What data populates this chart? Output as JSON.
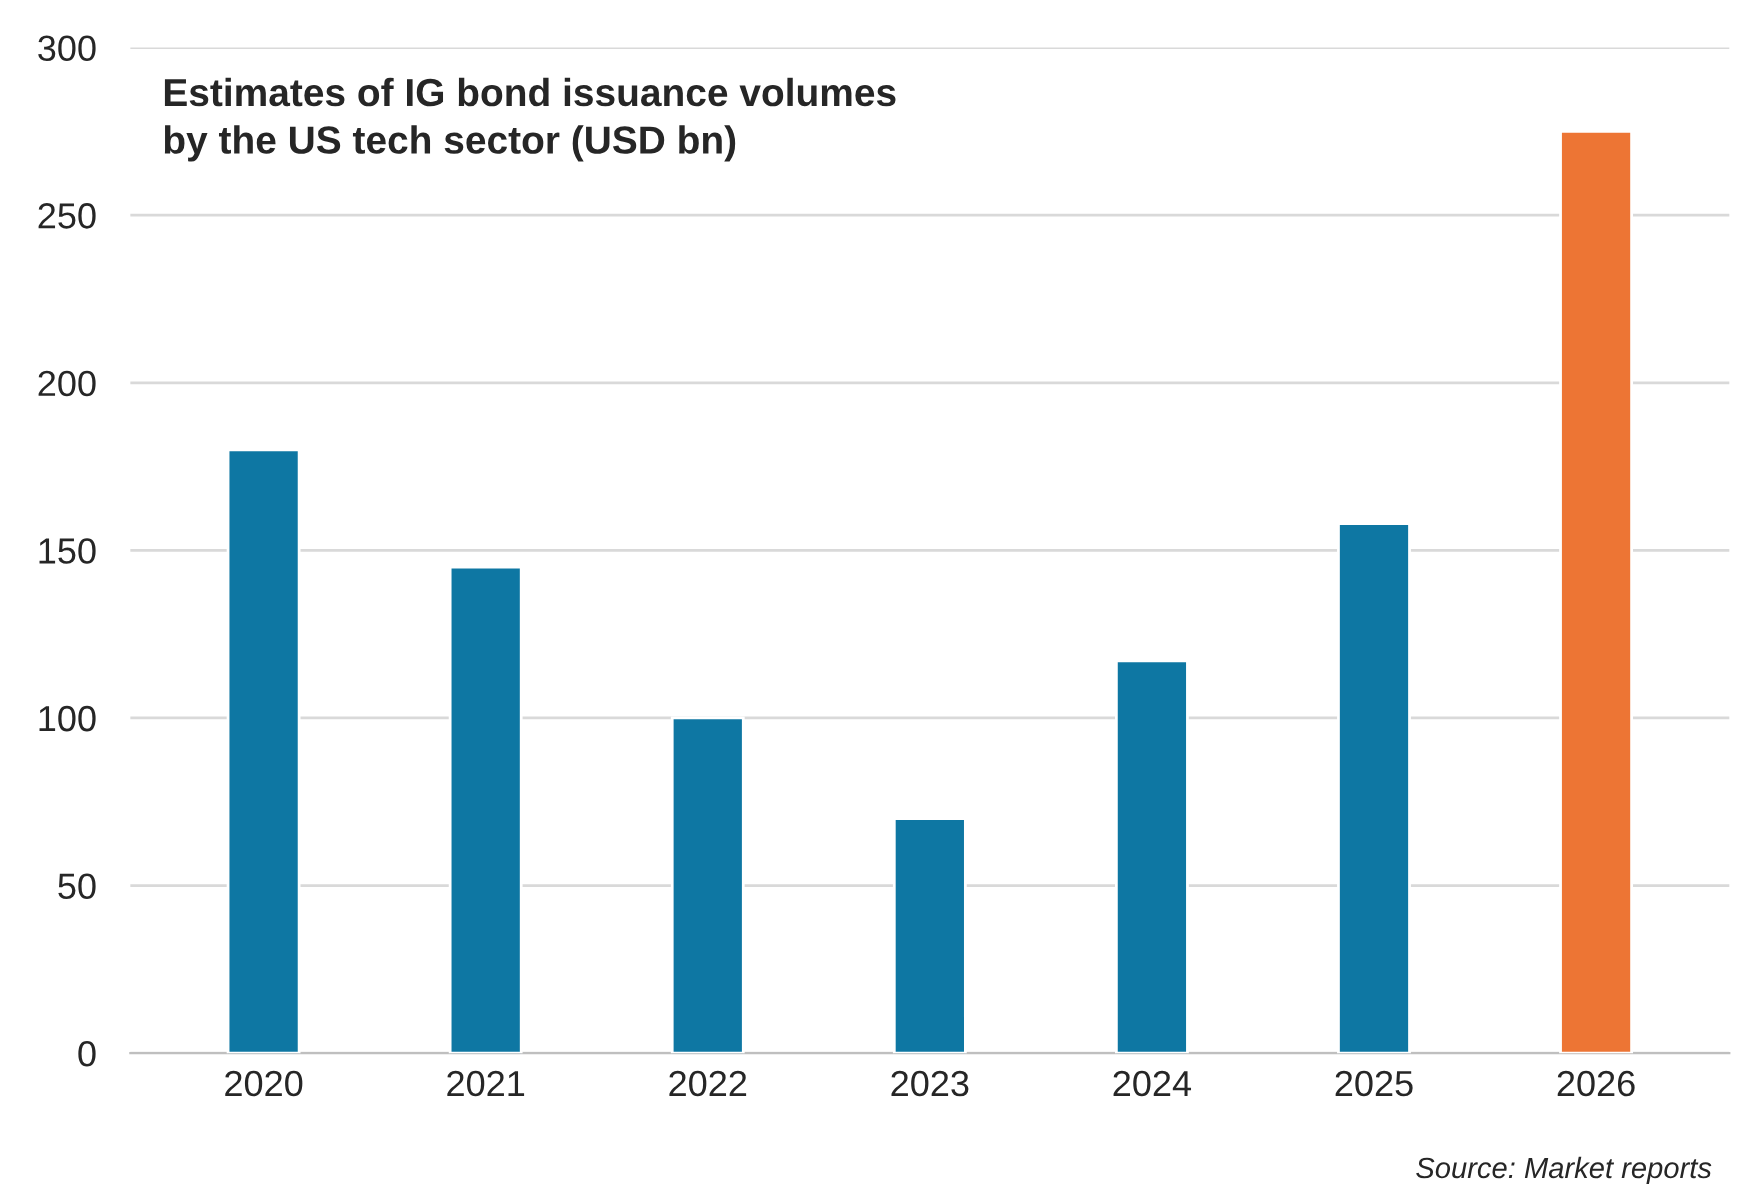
{
  "chart_data": {
    "type": "bar",
    "title": "Estimates of IG bond issuance volumes\nby the US tech sector (USD bn)",
    "categories": [
      "2020",
      "2021",
      "2022",
      "2023",
      "2024",
      "2025",
      "2026"
    ],
    "values": [
      180,
      145,
      100,
      70,
      117,
      158,
      275
    ],
    "colors": [
      "#0e77a3",
      "#0e77a3",
      "#0e77a3",
      "#0e77a3",
      "#0e77a3",
      "#0e77a3",
      "#ed7534"
    ],
    "ylim": [
      0,
      300
    ],
    "yticks": [
      0,
      50,
      100,
      150,
      200,
      250,
      300
    ],
    "grid": "y",
    "annotations": [
      "Source: Market reports"
    ]
  }
}
